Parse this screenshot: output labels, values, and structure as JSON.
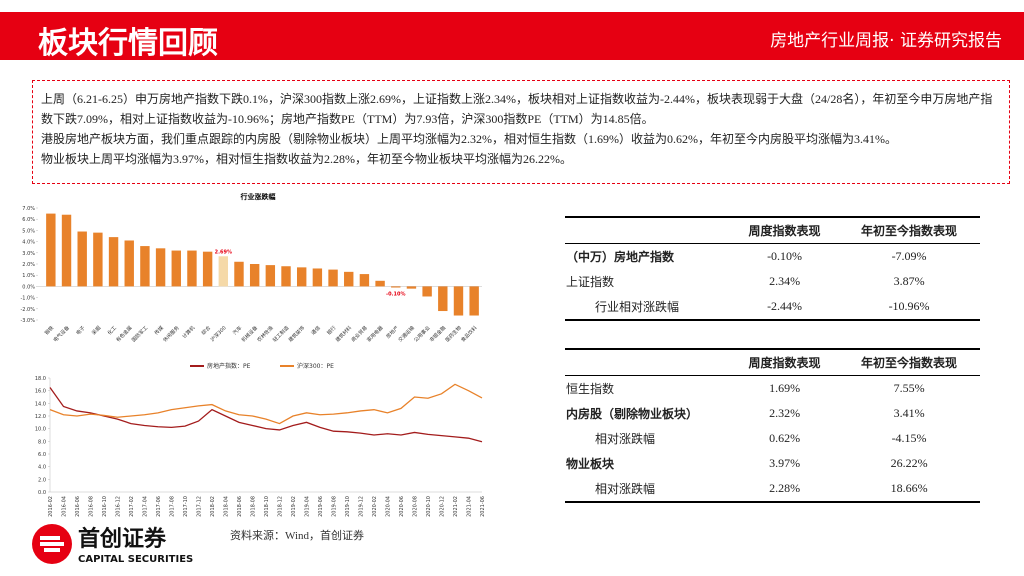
{
  "header": {
    "title": "板块行情回顾",
    "report": "房地产行业周报· 证券研究报告"
  },
  "summary": {
    "paragraphs": [
      "上周（6.21-6.25）申万房地产指数下跌0.1%，沪深300指数上涨2.69%，上证指数上涨2.34%，板块相对上证指数收益为-2.44%，板块表现弱于大盘（24/28名），年初至今申万房地产指数下跌7.09%，相对上证指数收益为-10.96%；房地产指数PE（TTM）为7.93倍，沪深300指数PE（TTM）为14.85倍。",
      "港股房地产板块方面，我们重点跟踪的内房股（剔除物业板块）上周平均涨幅为2.32%，相对恒生指数（1.69%）收益为0.62%，年初至今内房股平均涨幅为3.41%。",
      "物业板块上周平均涨幅为3.97%，相对恒生指数收益为2.28%，年初至今物业板块平均涨幅为26.22%。"
    ]
  },
  "chart_data": [
    {
      "type": "bar",
      "title": "行业涨跌幅",
      "categories": [
        "钢铁",
        "电气设备",
        "电子",
        "采掘",
        "化工",
        "有色金属",
        "国防军工",
        "传媒",
        "休闲服务",
        "计算机",
        "综合",
        "沪深300",
        "汽车",
        "机械设备",
        "农林牧渔",
        "轻工制造",
        "建筑装饰",
        "通信",
        "银行",
        "建筑材料",
        "商业贸易",
        "家用电器",
        "房地产",
        "交通运输",
        "公用事业",
        "非银金融",
        "医药生物",
        "食品饮料"
      ],
      "values": [
        6.5,
        6.4,
        4.9,
        4.8,
        4.4,
        4.1,
        3.6,
        3.4,
        3.2,
        3.2,
        3.1,
        2.69,
        2.2,
        2.0,
        1.9,
        1.8,
        1.7,
        1.6,
        1.5,
        1.3,
        1.1,
        0.5,
        -0.1,
        -0.2,
        -0.9,
        -2.2,
        -2.6,
        -2.6
      ],
      "value_labels": [
        null,
        null,
        null,
        null,
        null,
        null,
        null,
        null,
        null,
        null,
        null,
        "2.69%",
        null,
        null,
        null,
        null,
        null,
        null,
        null,
        null,
        null,
        null,
        "-0.10%",
        null,
        null,
        null,
        null,
        null
      ],
      "colors": [
        "#e8822a",
        "#e8822a",
        "#e8822a",
        "#e8822a",
        "#e8822a",
        "#e8822a",
        "#e8822a",
        "#e8822a",
        "#e8822a",
        "#e8822a",
        "#e8822a",
        "#f5d9a8",
        "#e8822a",
        "#e8822a",
        "#e8822a",
        "#e8822a",
        "#e8822a",
        "#e8822a",
        "#e8822a",
        "#e8822a",
        "#e8822a",
        "#e8822a",
        "#e8822a",
        "#e8822a",
        "#e8822a",
        "#e8822a",
        "#e8822a",
        "#e8822a"
      ],
      "ylim": [
        -3,
        7
      ],
      "yticks": [
        {
          "value": -3,
          "label": "-3.0%"
        },
        {
          "value": -2,
          "label": "-2.0%"
        },
        {
          "value": -1,
          "label": "-1.0%"
        },
        {
          "value": 0,
          "label": "0.0%"
        },
        {
          "value": 1,
          "label": "1.0%"
        },
        {
          "value": 2,
          "label": "2.0%"
        },
        {
          "value": 3,
          "label": "3.0%"
        },
        {
          "value": 4,
          "label": "4.0%"
        },
        {
          "value": 5,
          "label": "5.0%"
        },
        {
          "value": 6,
          "label": "6.0%"
        },
        {
          "value": 7,
          "label": "7.0%"
        }
      ]
    },
    {
      "type": "line",
      "x": [
        "2016-02",
        "2016-04",
        "2016-06",
        "2016-08",
        "2016-10",
        "2016-12",
        "2017-02",
        "2017-04",
        "2017-06",
        "2017-08",
        "2017-10",
        "2017-12",
        "2018-02",
        "2018-04",
        "2018-06",
        "2018-08",
        "2018-10",
        "2018-12",
        "2019-02",
        "2019-04",
        "2019-06",
        "2019-08",
        "2019-10",
        "2019-12",
        "2020-02",
        "2020-04",
        "2020-06",
        "2020-08",
        "2020-10",
        "2020-12",
        "2021-02",
        "2021-04",
        "2021-06"
      ],
      "series": [
        {
          "name": "房地产指数：PE",
          "color": "#a31c1c",
          "values": [
            16.5,
            13.5,
            12.8,
            12.5,
            12.0,
            11.5,
            10.8,
            10.5,
            10.3,
            10.2,
            10.4,
            11.2,
            13.0,
            12.0,
            11.0,
            10.5,
            10.0,
            9.8,
            10.5,
            11.0,
            10.2,
            9.6,
            9.5,
            9.3,
            9.0,
            9.2,
            9.0,
            9.4,
            9.1,
            8.9,
            8.7,
            8.5,
            7.93
          ]
        },
        {
          "name": "沪深300：PE",
          "color": "#e8822a",
          "values": [
            13.0,
            12.2,
            12.0,
            12.3,
            12.1,
            11.8,
            12.0,
            12.2,
            12.5,
            13.0,
            13.3,
            13.6,
            13.8,
            12.8,
            12.2,
            12.0,
            11.5,
            10.8,
            12.0,
            12.5,
            12.2,
            12.3,
            12.5,
            12.8,
            13.0,
            12.5,
            13.2,
            15.0,
            14.8,
            15.5,
            17.0,
            16.0,
            14.85
          ]
        }
      ],
      "ylim": [
        0,
        18
      ],
      "yticks": [
        {
          "value": 0,
          "label": "0.0"
        },
        {
          "value": 2,
          "label": "2.0"
        },
        {
          "value": 4,
          "label": "4.0"
        },
        {
          "value": 6,
          "label": "6.0"
        },
        {
          "value": 8,
          "label": "8.0"
        },
        {
          "value": 10,
          "label": "10.0"
        },
        {
          "value": 12,
          "label": "12.0"
        },
        {
          "value": 14,
          "label": "14.0"
        },
        {
          "value": 16,
          "label": "16.0"
        },
        {
          "value": 18,
          "label": "18.0"
        }
      ]
    }
  ],
  "tables": [
    {
      "header": [
        "周度指数表现",
        "年初至今指数表现"
      ],
      "rows": [
        [
          "（中万）房地产指数",
          "-0.10%",
          "-7.09%"
        ],
        [
          "上证指数",
          "2.34%",
          "3.87%"
        ],
        [
          "行业相对涨跌幅",
          "-2.44%",
          "-10.96%"
        ]
      ]
    },
    {
      "header": [
        "周度指数表现",
        "年初至今指数表现"
      ],
      "rows": [
        [
          "恒生指数",
          "1.69%",
          "7.55%"
        ],
        [
          "内房股（剔除物业板块）",
          "2.32%",
          "3.41%"
        ],
        [
          "相对涨跌幅",
          "0.62%",
          "-4.15%"
        ],
        [
          "物业板块",
          "3.97%",
          "26.22%"
        ],
        [
          "相对涨跌幅",
          "2.28%",
          "18.66%"
        ]
      ]
    }
  ],
  "source": "资料来源：Wind，首创证券",
  "logo": {
    "name": "首创证券",
    "english": "CAPITAL SECURITIES"
  }
}
